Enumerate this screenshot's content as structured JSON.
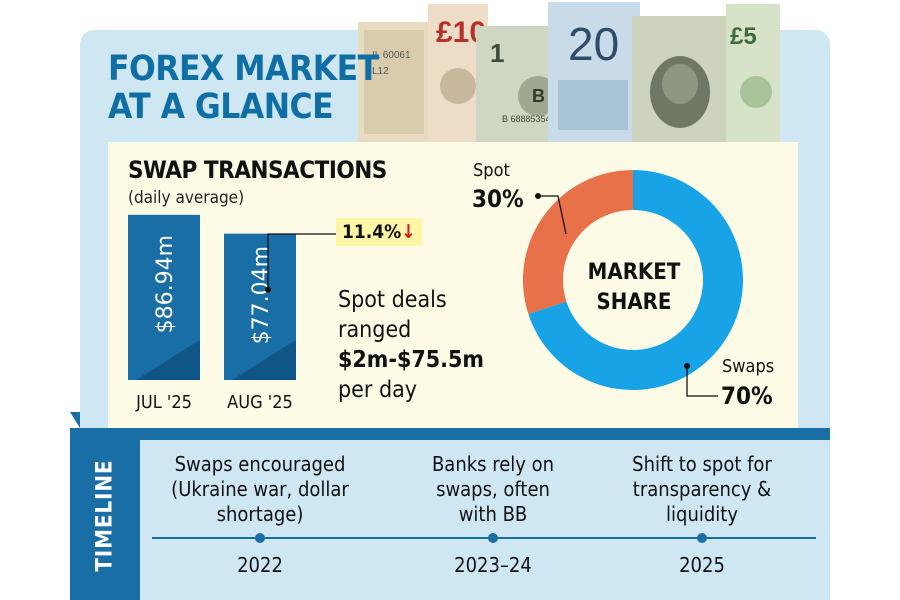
{
  "title": {
    "line1": "FOREX MARKET",
    "line2": "AT A GLANCE"
  },
  "swap_section": {
    "heading": "SWAP TRANSACTIONS",
    "subheading": "(daily average)",
    "change_value": "11.4%",
    "change_arrow": "↓"
  },
  "spot_note": {
    "line1": "Spot deals",
    "line2": "ranged",
    "line3": "$2m-$75.5m",
    "line4": "per day"
  },
  "donut": {
    "center_line1": "MARKET",
    "center_line2": "SHARE"
  },
  "timeline": {
    "heading": "TIMELINE",
    "events": [
      {
        "year": "2022",
        "text": [
          "Swaps encouraged",
          "(Ukraine war, dollar",
          "shortage)"
        ]
      },
      {
        "year": "2023–24",
        "text": [
          "Banks rely on",
          "swaps, often",
          "with BB"
        ]
      },
      {
        "year": "2025",
        "text": [
          "Shift to spot for",
          "transparency &",
          "liquidity"
        ]
      }
    ]
  },
  "colors": {
    "accent_blue": "#1a6ea6",
    "light_blue": "#cfe6f3",
    "cream": "#fdfbe6",
    "swaps_blue": "#17a3e6",
    "spot_orange": "#e8714a",
    "down_red": "#d5161f",
    "badge_yellow": "#fbf5a6"
  },
  "icons": [
    "currency-notes-illustration",
    "down-arrow-icon"
  ],
  "chart_data": [
    {
      "type": "bar",
      "title": "SWAP TRANSACTIONS",
      "subtitle": "(daily average)",
      "categories": [
        "JUL '25",
        "AUG '25"
      ],
      "values": [
        86.94,
        77.04
      ],
      "value_labels": [
        "$86.94m",
        "$77.04m"
      ],
      "unit": "$m",
      "annotation": "11.4% ↓",
      "ylim": [
        0,
        100
      ]
    },
    {
      "type": "pie",
      "title": "MARKET SHARE",
      "style": "donut",
      "slices": [
        {
          "name": "Spot",
          "value": 30,
          "label": "30%"
        },
        {
          "name": "Swaps",
          "value": 70,
          "label": "70%"
        }
      ]
    }
  ]
}
